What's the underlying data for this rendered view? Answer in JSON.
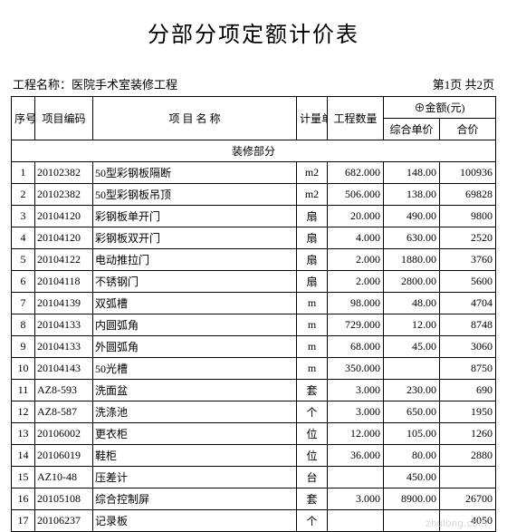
{
  "title": "分部分项定额计价表",
  "project_label": "工程名称：",
  "project_name": "医院手术室装修工程",
  "page_info": "第1页 共2页",
  "headers": {
    "seq": "序号",
    "code": "项目编码",
    "name": "项 目 名 称",
    "unit": "计量单位",
    "qty": "工程数量",
    "amount_symbol": "⊕",
    "amount_label": "金额(元)",
    "unit_price": "综合单价",
    "total": "合价"
  },
  "section": "装修部分",
  "rows": [
    {
      "seq": "1",
      "code": "20102382",
      "name": "50型彩钢板隔断",
      "unit": "m2",
      "qty": "682.000",
      "price": "148.00",
      "total": "100936"
    },
    {
      "seq": "2",
      "code": "20102382",
      "name": "50型彩钢板吊顶",
      "unit": "m2",
      "qty": "506.000",
      "price": "138.00",
      "total": "69828"
    },
    {
      "seq": "3",
      "code": "20104120",
      "name": "彩钢板单开门",
      "unit": "扇",
      "qty": "20.000",
      "price": "490.00",
      "total": "9800"
    },
    {
      "seq": "4",
      "code": "20104120",
      "name": "彩钢板双开门",
      "unit": "扇",
      "qty": "4.000",
      "price": "630.00",
      "total": "2520"
    },
    {
      "seq": "5",
      "code": "20104122",
      "name": "电动推拉门",
      "unit": "扇",
      "qty": "2.000",
      "price": "1880.00",
      "total": "3760"
    },
    {
      "seq": "6",
      "code": "20104118",
      "name": "不锈钢门",
      "unit": "扇",
      "qty": "2.000",
      "price": "2800.00",
      "total": "5600"
    },
    {
      "seq": "7",
      "code": "20104139",
      "name": "双弧槽",
      "unit": "m",
      "qty": "98.000",
      "price": "48.00",
      "total": "4704"
    },
    {
      "seq": "8",
      "code": "20104133",
      "name": "内圆弧角",
      "unit": "m",
      "qty": "729.000",
      "price": "12.00",
      "total": "8748"
    },
    {
      "seq": "9",
      "code": "20104133",
      "name": "外圆弧角",
      "unit": "m",
      "qty": "68.000",
      "price": "45.00",
      "total": "3060"
    },
    {
      "seq": "10",
      "code": "20104143",
      "name": "50光槽",
      "unit": "m",
      "qty": "350.000",
      "price": "",
      "total": "8750"
    },
    {
      "seq": "11",
      "code": "AZ8-593",
      "name": "洗面盆",
      "unit": "套",
      "qty": "3.000",
      "price": "230.00",
      "total": "690"
    },
    {
      "seq": "12",
      "code": "AZ8-587",
      "name": "洗涤池",
      "unit": "个",
      "qty": "3.000",
      "price": "650.00",
      "total": "1950"
    },
    {
      "seq": "13",
      "code": "20106002",
      "name": "更衣柜",
      "unit": "位",
      "qty": "12.000",
      "price": "105.00",
      "total": "1260"
    },
    {
      "seq": "14",
      "code": "20106019",
      "name": "鞋柜",
      "unit": "位",
      "qty": "36.000",
      "price": "80.00",
      "total": "2880"
    },
    {
      "seq": "15",
      "code": "AZ10-48",
      "name": "压差计",
      "unit": "台",
      "qty": "",
      "price": "450.00",
      "total": ""
    },
    {
      "seq": "16",
      "code": "20105108",
      "name": "综合控制屏",
      "unit": "套",
      "qty": "3.000",
      "price": "8900.00",
      "total": "26700"
    },
    {
      "seq": "17",
      "code": "20106237",
      "name": "记录板",
      "unit": "个",
      "qty": "",
      "price": "",
      "total": "4050"
    }
  ],
  "watermark": "zhulong.com"
}
